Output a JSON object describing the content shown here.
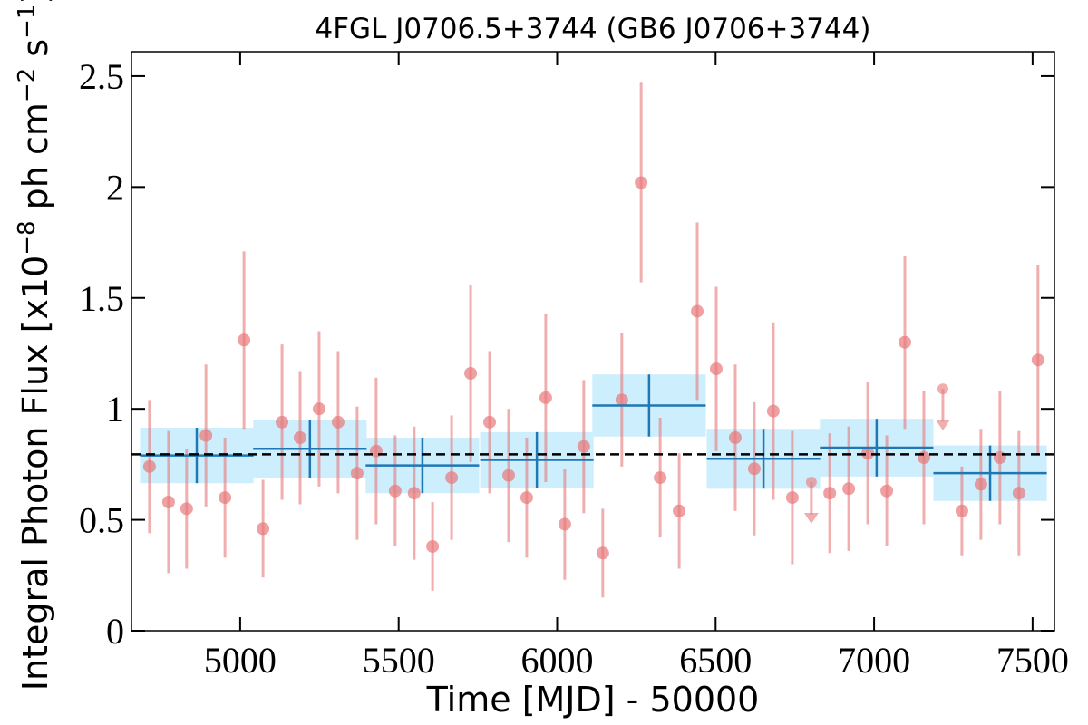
{
  "chart_data": {
    "type": "errorbar",
    "title": "4FGL J0706.5+3744 (GB6 J0706+3744)",
    "xlabel": "Time [MJD] - 50000",
    "ylabel": [
      "Integral Photon Flux [x10",
      "−8",
      " ph cm",
      "−2",
      " s",
      "−1",
      "]"
    ],
    "xlim": [
      4657,
      7569
    ],
    "ylim": [
      0,
      2.61
    ],
    "xticks": [
      5000,
      5500,
      6000,
      6500,
      7000,
      7500
    ],
    "yticks": [
      0,
      0.5,
      1,
      1.5,
      2,
      2.5
    ],
    "tick_direction": "in",
    "mirror_ticks": true,
    "hline": {
      "value": 0.795,
      "color": "#000000",
      "dashed": true
    },
    "series": [
      {
        "style": "bins",
        "color": "#1f77b4",
        "fill": "#cdeefc",
        "x": [
          4863,
          5220,
          5575,
          5936,
          6290,
          6651,
          7008,
          7366
        ],
        "xerr": [
          179,
          179,
          179,
          179,
          179,
          179,
          179,
          179
        ],
        "values": [
          0.79,
          0.82,
          0.745,
          0.77,
          1.015,
          0.775,
          0.825,
          0.71
        ],
        "errors": [
          0.125,
          0.13,
          0.125,
          0.125,
          0.14,
          0.135,
          0.13,
          0.125
        ]
      },
      {
        "style": "points",
        "color": "#e8787a",
        "x": [
          4714,
          4774,
          4831,
          4892,
          4952,
          5012,
          5072,
          5132,
          5189,
          5249,
          5309,
          5369,
          5429,
          5489,
          5549,
          5607,
          5667,
          5727,
          5787,
          5847,
          5904,
          5964,
          6024,
          6084,
          6144,
          6204,
          6265,
          6325,
          6385,
          6442,
          6502,
          6562,
          6622,
          6682,
          6742,
          6860,
          6920,
          6980,
          7040,
          7097,
          7157,
          7277,
          7337,
          7397,
          7457,
          7517
        ],
        "values": [
          0.74,
          0.58,
          0.55,
          0.88,
          0.6,
          1.31,
          0.46,
          0.94,
          0.87,
          1.0,
          0.94,
          0.71,
          0.81,
          0.63,
          0.62,
          0.38,
          0.69,
          1.16,
          0.94,
          0.7,
          0.6,
          1.05,
          0.48,
          0.83,
          0.35,
          1.04,
          2.02,
          0.69,
          0.54,
          1.44,
          1.18,
          0.87,
          0.73,
          0.99,
          0.6,
          0.62,
          0.64,
          0.8,
          0.63,
          1.3,
          0.78,
          0.54,
          0.66,
          0.78,
          0.62,
          1.22
        ],
        "errors": [
          0.3,
          0.32,
          0.27,
          0.32,
          0.27,
          0.4,
          0.22,
          0.35,
          0.3,
          0.35,
          0.32,
          0.3,
          0.33,
          0.25,
          0.3,
          0.2,
          0.28,
          0.4,
          0.32,
          0.3,
          0.27,
          0.38,
          0.25,
          0.3,
          0.2,
          0.3,
          0.45,
          0.27,
          0.26,
          0.4,
          0.37,
          0.33,
          0.3,
          0.4,
          0.3,
          0.27,
          0.28,
          0.32,
          0.25,
          0.39,
          0.3,
          0.2,
          0.25,
          0.3,
          0.28,
          0.43
        ]
      },
      {
        "style": "upper_limits",
        "color": "#e8787a",
        "x": [
          6802,
          7217
        ],
        "values": [
          0.67,
          1.09
        ]
      }
    ]
  }
}
